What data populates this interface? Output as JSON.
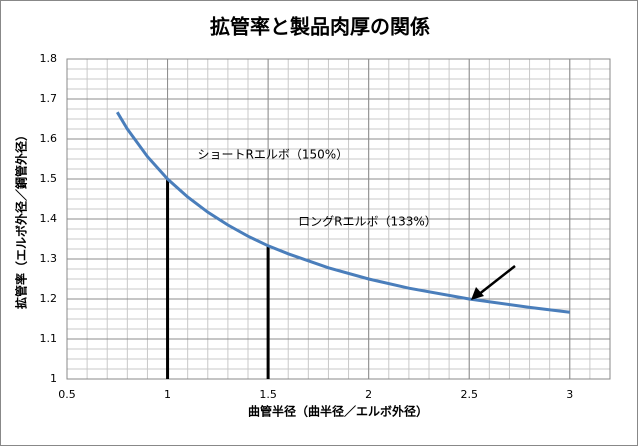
{
  "chart_data": {
    "type": "line",
    "title": "拡管率と製品肉厚の関係",
    "x_label": "曲管半径（曲半径／エルボ外径）",
    "y_label": "拡管率（エルボ外径／鋼管外径）",
    "x": [
      0.75,
      0.8,
      0.9,
      1,
      1.1,
      1.2,
      1.3,
      1.4,
      1.5,
      1.6,
      1.8,
      2,
      2.2,
      2.5,
      2.8,
      3
    ],
    "series": [
      {
        "color": "#4a7ebb",
        "values": [
          1.667,
          1.625,
          1.556,
          1.5,
          1.455,
          1.417,
          1.385,
          1.357,
          1.333,
          1.313,
          1.278,
          1.25,
          1.227,
          1.2,
          1.179,
          1.167
        ]
      }
    ],
    "xlim": [
      0.5,
      3.2
    ],
    "ylim": [
      1,
      1.8
    ],
    "xticks": [
      0.5,
      1,
      1.5,
      2,
      2.5,
      3
    ],
    "yticks": [
      1,
      1.1,
      1.2,
      1.3,
      1.4,
      1.5,
      1.6,
      1.7,
      1.8
    ],
    "grid": true,
    "annotations": [
      {
        "text": "ショートRエルボ（150%）",
        "x": 1,
        "y": 1.5
      },
      {
        "text": "ロングRエルボ（133%）",
        "x": 1.5,
        "y": 1.333
      }
    ]
  }
}
